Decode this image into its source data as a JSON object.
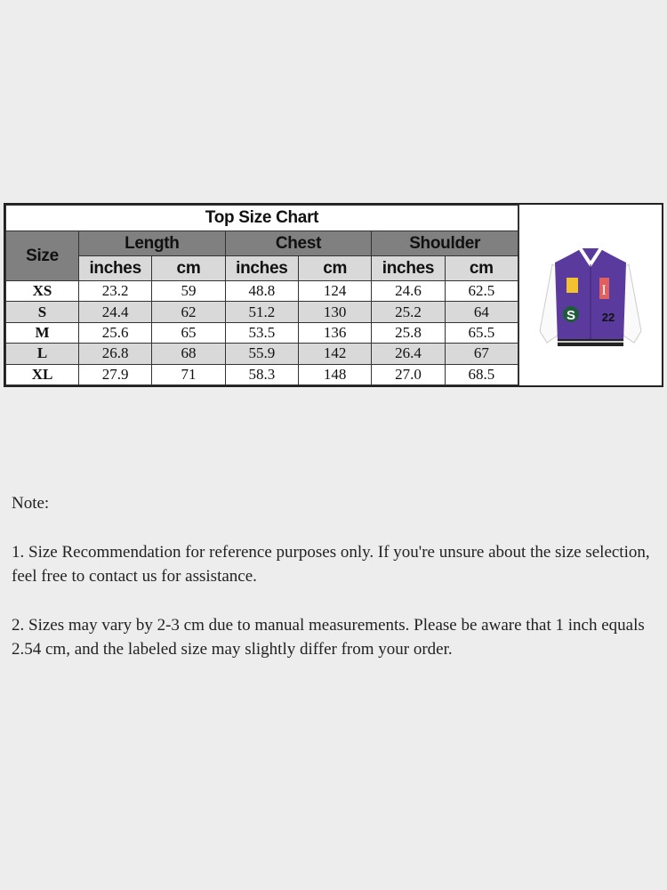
{
  "chart": {
    "title": "Top Size Chart",
    "size_header": "Size",
    "groups": [
      "Length",
      "Chest",
      "Shoulder"
    ],
    "units": [
      "inches",
      "cm",
      "inches",
      "cm",
      "inches",
      "cm"
    ],
    "rows": [
      {
        "size": "XS",
        "values": [
          "23.2",
          "59",
          "48.8",
          "124",
          "24.6",
          "62.5"
        ]
      },
      {
        "size": "S",
        "values": [
          "24.4",
          "62",
          "51.2",
          "130",
          "25.2",
          "64"
        ]
      },
      {
        "size": "M",
        "values": [
          "25.6",
          "65",
          "53.5",
          "136",
          "25.8",
          "65.5"
        ]
      },
      {
        "size": "L",
        "values": [
          "26.8",
          "68",
          "55.9",
          "142",
          "26.4",
          "67"
        ]
      },
      {
        "size": "XL",
        "values": [
          "27.9",
          "71",
          "58.3",
          "148",
          "27.0",
          "68.5"
        ]
      }
    ],
    "colors": {
      "header": "#808080",
      "subheader": "#d9d9d9",
      "jacket_body": "#5b3a9e",
      "sleeves": "#ffffff"
    }
  },
  "notes": {
    "heading": "Note:",
    "items": [
      "1. Size Recommendation for reference purposes only. If you're unsure about the size selection, feel free to contact us for assistance.",
      "2. Sizes may vary by 2-3 cm due to manual measurements. Please be aware that 1 inch equals 2.54 cm, and the labeled size may slightly differ from your order."
    ]
  }
}
